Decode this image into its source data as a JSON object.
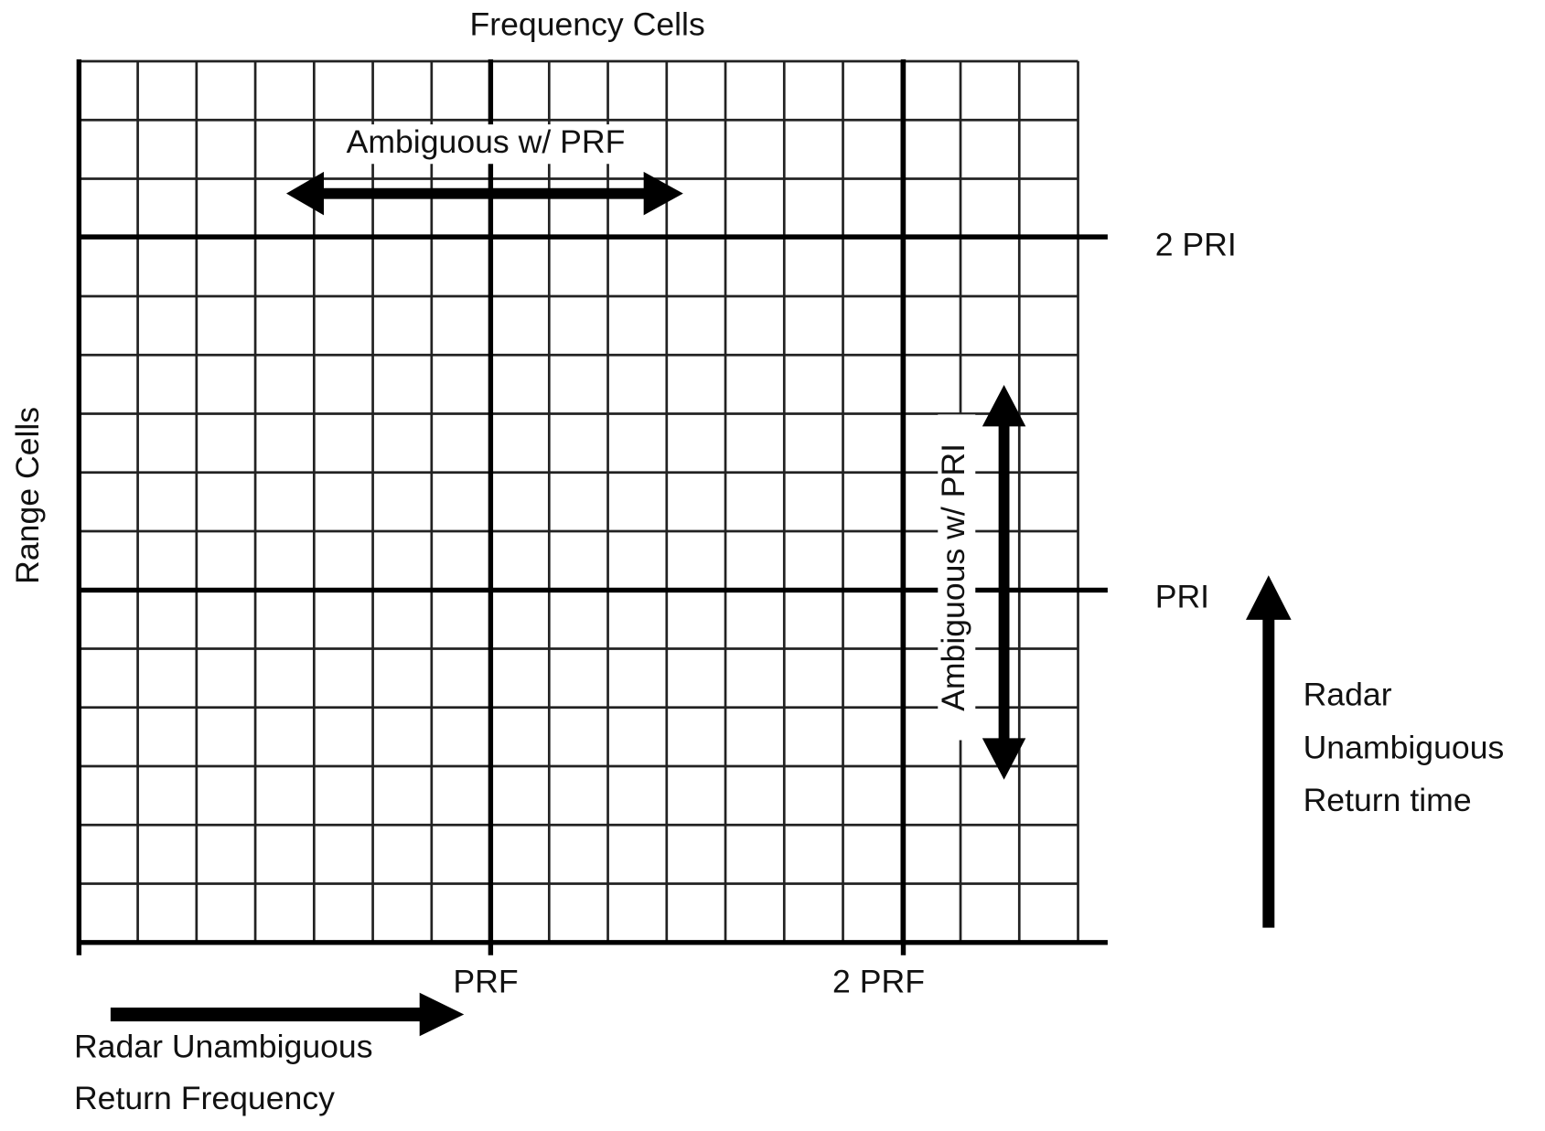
{
  "title": "Frequency Cells",
  "y_axis_label": "Range Cells",
  "annotations": {
    "horizontal_ambiguity": "Ambiguous w/ PRF",
    "vertical_ambiguity": "Ambiguous w/ PRI"
  },
  "row_markers": [
    "2 PRI",
    "PRI"
  ],
  "column_markers": [
    "PRF",
    "2 PRF"
  ],
  "time_arrow_label": [
    "Radar",
    "Unambiguous",
    "Return time"
  ],
  "frequency_arrow_label": [
    "Radar Unambiguous",
    "Return Frequency"
  ]
}
